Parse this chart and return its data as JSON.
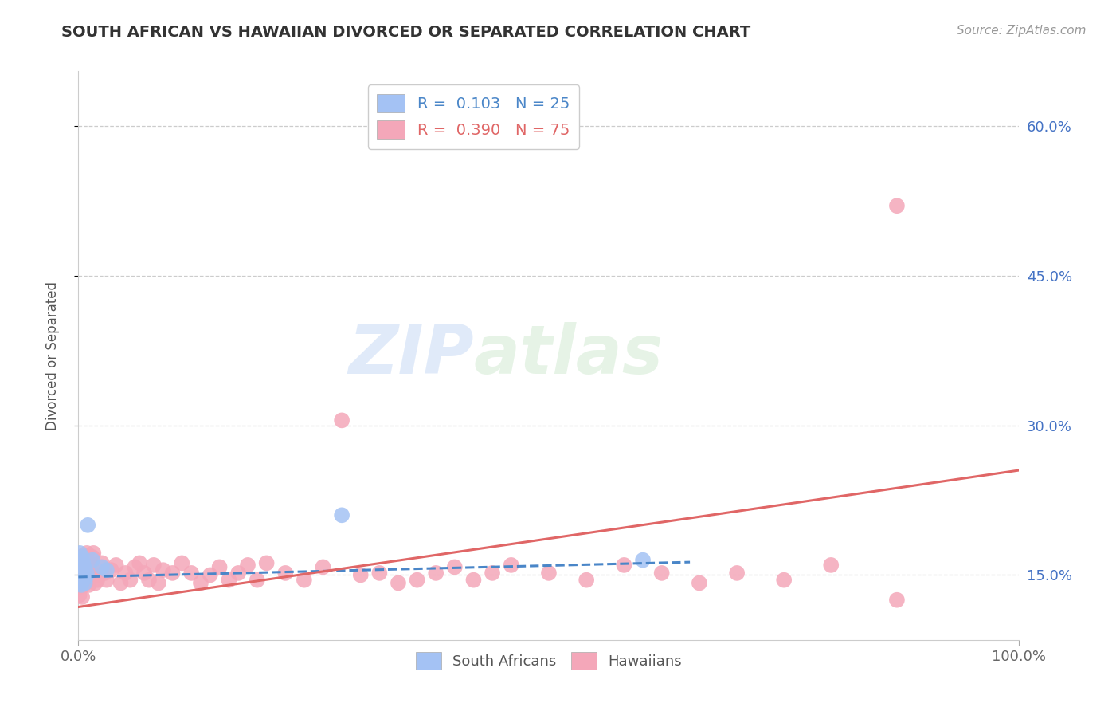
{
  "title": "SOUTH AFRICAN VS HAWAIIAN DIVORCED OR SEPARATED CORRELATION CHART",
  "source": "Source: ZipAtlas.com",
  "ylabel": "Divorced or Separated",
  "watermark_zip": "ZIP",
  "watermark_atlas": "atlas",
  "yticks": [
    0.15,
    0.3,
    0.45,
    0.6
  ],
  "ytick_labels": [
    "15.0%",
    "30.0%",
    "45.0%",
    "60.0%"
  ],
  "xlim": [
    0.0,
    1.0
  ],
  "ylim": [
    0.085,
    0.655
  ],
  "blue_color": "#a4c2f4",
  "pink_color": "#f4a7b9",
  "blue_line_color": "#4a86c8",
  "pink_line_color": "#e06666",
  "sa_x": [
    0.0005,
    0.0008,
    0.001,
    0.0012,
    0.0015,
    0.002,
    0.002,
    0.0025,
    0.003,
    0.003,
    0.0035,
    0.004,
    0.004,
    0.005,
    0.005,
    0.006,
    0.007,
    0.008,
    0.009,
    0.01,
    0.015,
    0.025,
    0.03,
    0.28,
    0.6
  ],
  "sa_y": [
    0.155,
    0.16,
    0.148,
    0.142,
    0.172,
    0.152,
    0.165,
    0.158,
    0.155,
    0.14,
    0.162,
    0.148,
    0.168,
    0.145,
    0.162,
    0.158,
    0.142,
    0.148,
    0.152,
    0.2,
    0.165,
    0.158,
    0.155,
    0.21,
    0.165
  ],
  "hi_x": [
    0.001,
    0.001,
    0.002,
    0.002,
    0.003,
    0.003,
    0.004,
    0.004,
    0.005,
    0.005,
    0.006,
    0.006,
    0.007,
    0.008,
    0.008,
    0.009,
    0.01,
    0.011,
    0.012,
    0.013,
    0.014,
    0.015,
    0.016,
    0.018,
    0.02,
    0.022,
    0.025,
    0.028,
    0.03,
    0.035,
    0.04,
    0.045,
    0.05,
    0.055,
    0.06,
    0.065,
    0.07,
    0.075,
    0.08,
    0.085,
    0.09,
    0.1,
    0.11,
    0.12,
    0.13,
    0.14,
    0.15,
    0.16,
    0.17,
    0.18,
    0.19,
    0.2,
    0.22,
    0.24,
    0.26,
    0.28,
    0.3,
    0.32,
    0.34,
    0.36,
    0.38,
    0.4,
    0.42,
    0.44,
    0.46,
    0.5,
    0.54,
    0.58,
    0.62,
    0.66,
    0.7,
    0.75,
    0.8,
    0.87,
    0.87
  ],
  "hi_y": [
    0.13,
    0.148,
    0.138,
    0.155,
    0.145,
    0.162,
    0.128,
    0.15,
    0.152,
    0.165,
    0.145,
    0.17,
    0.152,
    0.142,
    0.165,
    0.172,
    0.158,
    0.14,
    0.162,
    0.152,
    0.158,
    0.168,
    0.172,
    0.142,
    0.145,
    0.15,
    0.162,
    0.152,
    0.145,
    0.155,
    0.16,
    0.142,
    0.152,
    0.145,
    0.158,
    0.162,
    0.152,
    0.145,
    0.16,
    0.142,
    0.155,
    0.152,
    0.162,
    0.152,
    0.142,
    0.15,
    0.158,
    0.145,
    0.152,
    0.16,
    0.145,
    0.162,
    0.152,
    0.145,
    0.158,
    0.305,
    0.15,
    0.152,
    0.142,
    0.145,
    0.152,
    0.158,
    0.145,
    0.152,
    0.16,
    0.152,
    0.145,
    0.16,
    0.152,
    0.142,
    0.152,
    0.145,
    0.16,
    0.125,
    0.52
  ],
  "sa_trend_x": [
    0.0,
    0.65
  ],
  "sa_trend_y": [
    0.148,
    0.163
  ],
  "hi_trend_x": [
    0.0,
    1.0
  ],
  "hi_trend_y": [
    0.118,
    0.255
  ]
}
